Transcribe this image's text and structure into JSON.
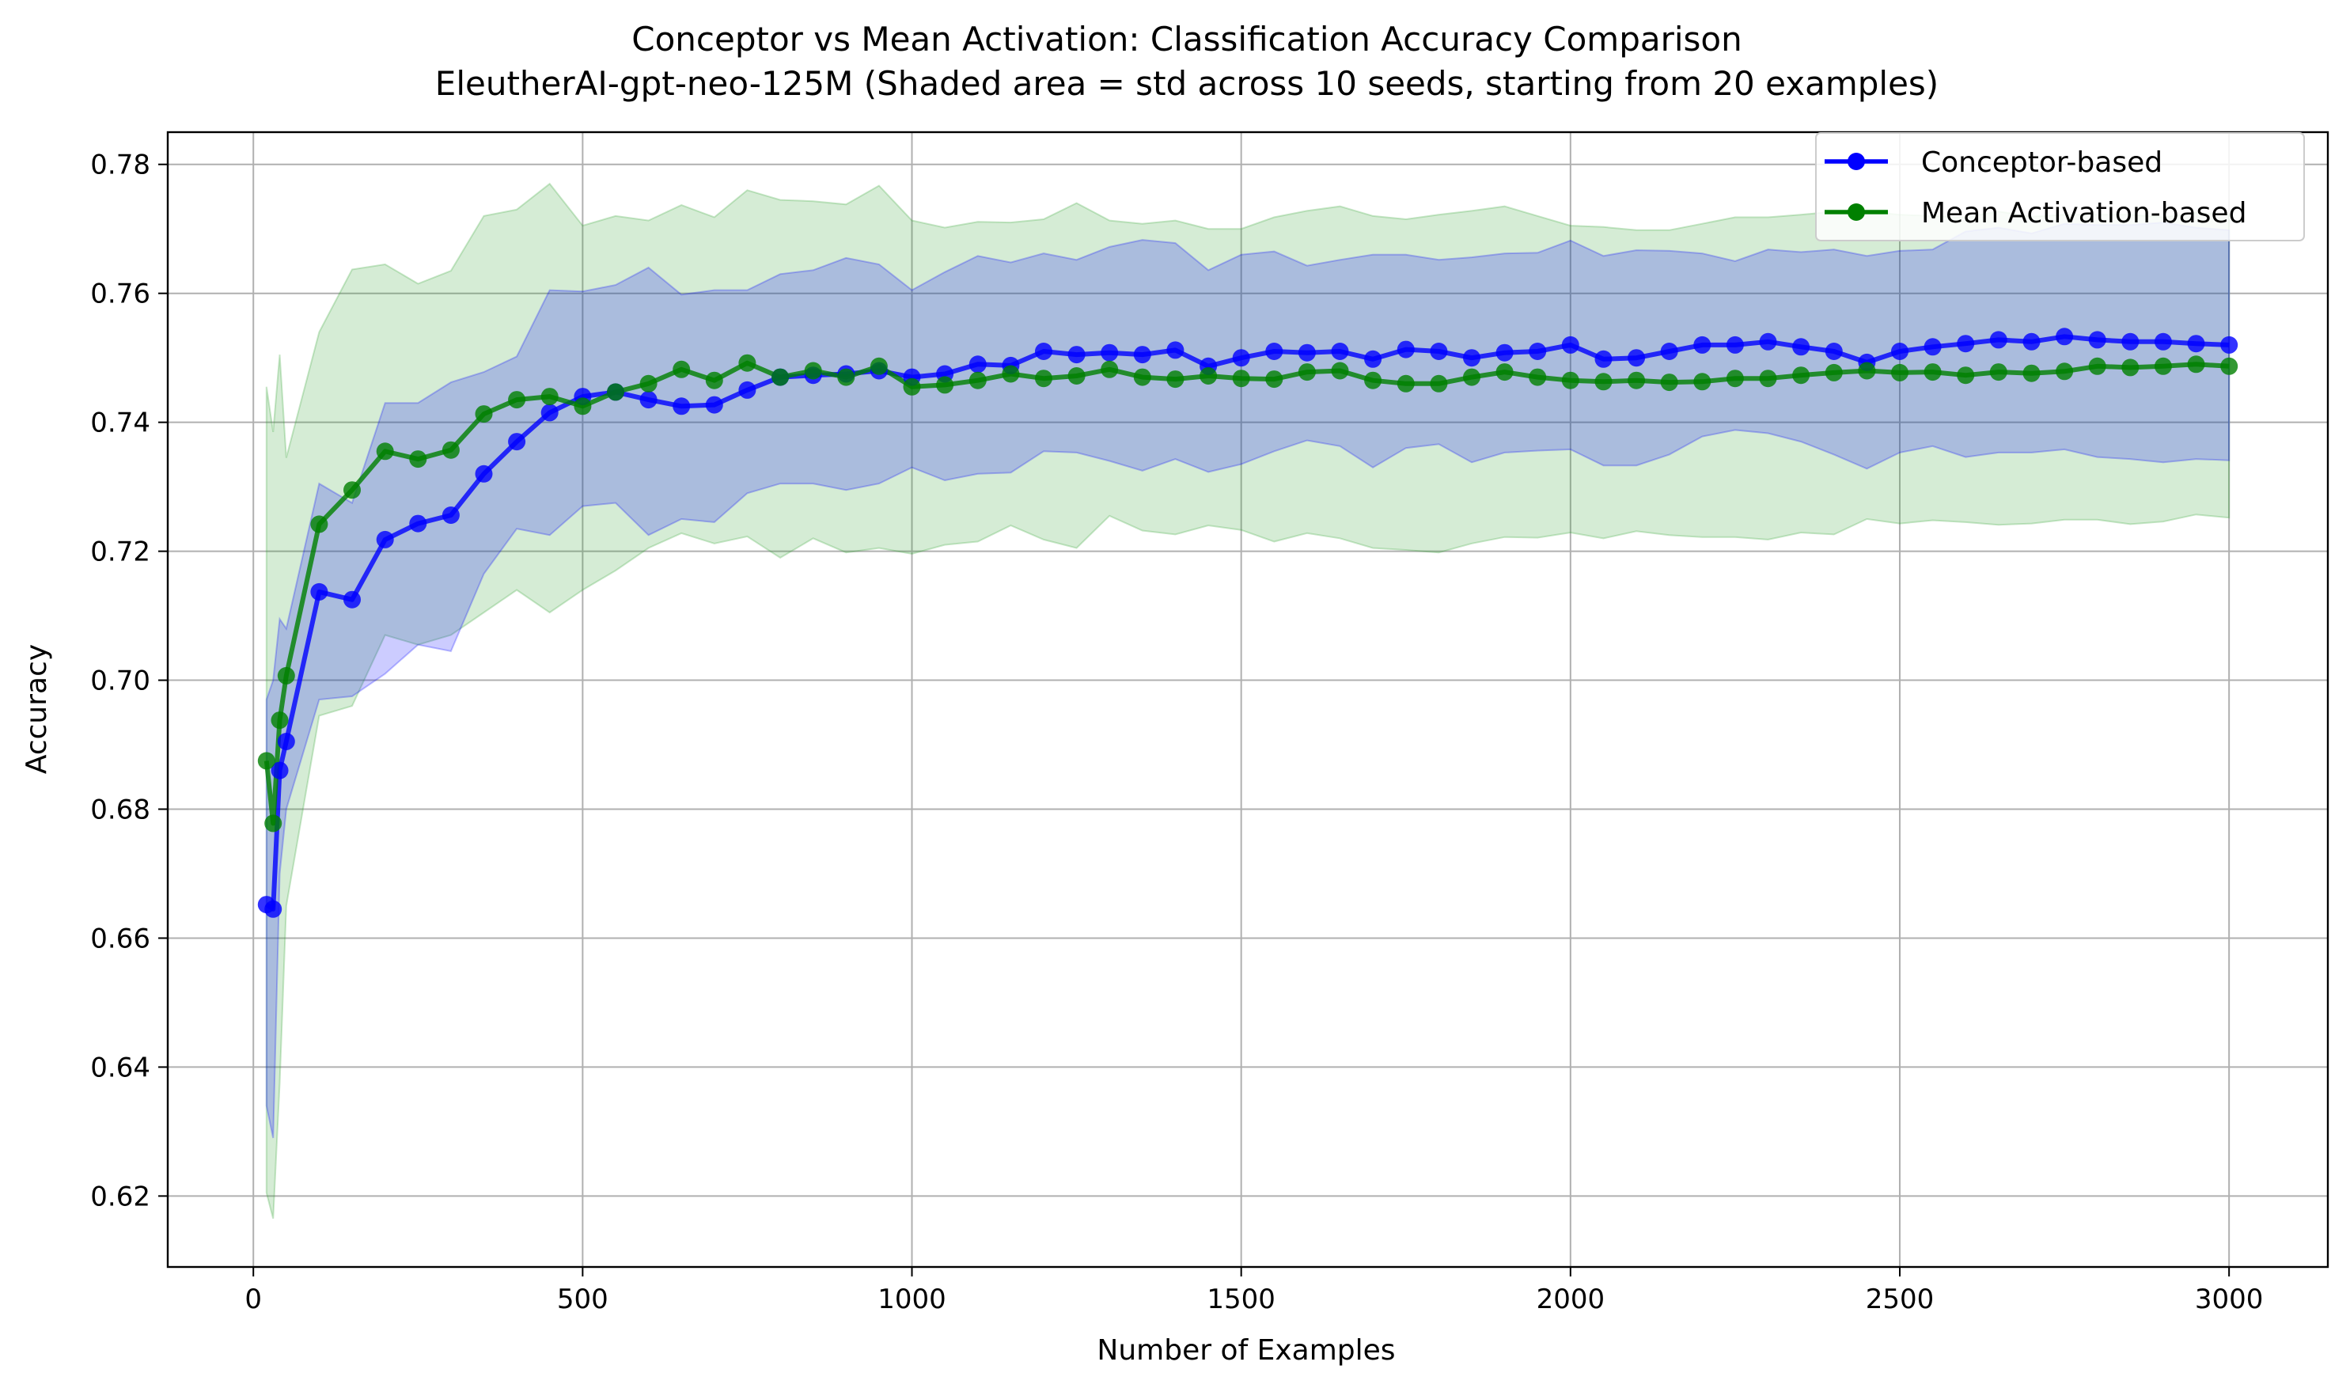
{
  "chart_data": {
    "type": "line",
    "title": "Conceptor vs Mean Activation: Classification Accuracy Comparison",
    "subtitle": "EleutherAI-gpt-neo-125M (Shaded area = std across 10 seeds, starting from 20 examples)",
    "xlabel": "Number of Examples",
    "ylabel": "Accuracy",
    "xlim": [
      -130,
      3150
    ],
    "ylim": [
      0.609,
      0.785
    ],
    "xticks": [
      0,
      500,
      1000,
      1500,
      2000,
      2500,
      3000
    ],
    "yticks": [
      0.62,
      0.64,
      0.66,
      0.68,
      0.7,
      0.72,
      0.74,
      0.76,
      0.78
    ],
    "grid": true,
    "legend_position": "top-right",
    "x": [
      20,
      30,
      40,
      50,
      100,
      150,
      200,
      250,
      300,
      350,
      400,
      450,
      500,
      550,
      600,
      650,
      700,
      750,
      800,
      850,
      900,
      950,
      1000,
      1050,
      1100,
      1150,
      1200,
      1250,
      1300,
      1350,
      1400,
      1450,
      1500,
      1550,
      1600,
      1650,
      1700,
      1750,
      1800,
      1850,
      1900,
      1950,
      2000,
      2050,
      2100,
      2150,
      2200,
      2250,
      2300,
      2350,
      2400,
      2450,
      2500,
      2550,
      2600,
      2650,
      2700,
      2750,
      2800,
      2850,
      2900,
      2950,
      3000
    ],
    "series": [
      {
        "name": "Conceptor-based",
        "color": "#0000ff",
        "band_color": "#0000ff",
        "values": [
          0.6652,
          0.6645,
          0.686,
          0.6905,
          0.7137,
          0.7125,
          0.7218,
          0.7243,
          0.7256,
          0.732,
          0.737,
          0.7415,
          0.744,
          0.7447,
          0.7435,
          0.7425,
          0.7427,
          0.745,
          0.747,
          0.7473,
          0.7475,
          0.748,
          0.747,
          0.7475,
          0.749,
          0.7488,
          0.751,
          0.7505,
          0.7508,
          0.7505,
          0.7512,
          0.7487,
          0.75,
          0.751,
          0.7508,
          0.751,
          0.7498,
          0.7513,
          0.751,
          0.75,
          0.7508,
          0.751,
          0.752,
          0.7498,
          0.75,
          0.751,
          0.752,
          0.752,
          0.7525,
          0.7517,
          0.751,
          0.7493,
          0.751,
          0.7517,
          0.7522,
          0.7528,
          0.7525,
          0.7533,
          0.7528,
          0.7525,
          0.7525,
          0.7522,
          0.752
        ],
        "std_lower": [
          0.634,
          0.629,
          0.67,
          0.68,
          0.697,
          0.6975,
          0.701,
          0.7055,
          0.7045,
          0.7165,
          0.7235,
          0.7225,
          0.727,
          0.7275,
          0.7225,
          0.725,
          0.7245,
          0.729,
          0.7305,
          0.7305,
          0.7295,
          0.7305,
          0.733,
          0.731,
          0.732,
          0.7322,
          0.7355,
          0.7353,
          0.734,
          0.7325,
          0.7343,
          0.7323,
          0.7335,
          0.7355,
          0.7372,
          0.7363,
          0.733,
          0.736,
          0.7366,
          0.7338,
          0.7353,
          0.7356,
          0.7358,
          0.7333,
          0.7333,
          0.735,
          0.7378,
          0.7388,
          0.7383,
          0.737,
          0.735,
          0.7328,
          0.7353,
          0.7363,
          0.7346,
          0.7353,
          0.7353,
          0.7358,
          0.7346,
          0.7343,
          0.7338,
          0.7343,
          0.7341
        ],
        "std_upper": [
          0.697,
          0.7,
          0.7095,
          0.708,
          0.7305,
          0.7275,
          0.743,
          0.743,
          0.7462,
          0.7478,
          0.7502,
          0.7605,
          0.7603,
          0.7613,
          0.764,
          0.7598,
          0.7605,
          0.7605,
          0.763,
          0.7636,
          0.7655,
          0.7645,
          0.7605,
          0.7633,
          0.7658,
          0.7648,
          0.7662,
          0.7652,
          0.7672,
          0.7683,
          0.7678,
          0.7636,
          0.766,
          0.7665,
          0.7643,
          0.7652,
          0.766,
          0.766,
          0.7652,
          0.7656,
          0.7662,
          0.7663,
          0.7682,
          0.7658,
          0.7667,
          0.7666,
          0.7662,
          0.765,
          0.7668,
          0.7664,
          0.7668,
          0.7658,
          0.7666,
          0.7668,
          0.7696,
          0.7702,
          0.7693,
          0.7708,
          0.7706,
          0.7706,
          0.771,
          0.7702,
          0.7698
        ]
      },
      {
        "name": "Mean Activation-based",
        "color": "#008000",
        "band_color": "#2ca02c",
        "values": [
          0.6875,
          0.6778,
          0.6938,
          0.7007,
          0.7242,
          0.7295,
          0.7355,
          0.7343,
          0.7357,
          0.7413,
          0.7435,
          0.744,
          0.7425,
          0.7447,
          0.746,
          0.7482,
          0.7465,
          0.7492,
          0.747,
          0.748,
          0.747,
          0.7487,
          0.7455,
          0.7458,
          0.7465,
          0.7475,
          0.7468,
          0.7472,
          0.7482,
          0.747,
          0.7467,
          0.7472,
          0.7468,
          0.7467,
          0.7478,
          0.748,
          0.7465,
          0.746,
          0.746,
          0.747,
          0.7478,
          0.747,
          0.7465,
          0.7463,
          0.7465,
          0.7462,
          0.7463,
          0.7468,
          0.7468,
          0.7473,
          0.7477,
          0.748,
          0.7477,
          0.7478,
          0.7473,
          0.7478,
          0.7476,
          0.7479,
          0.7487,
          0.7485,
          0.7487,
          0.749,
          0.7487
        ],
        "std_lower": [
          0.6205,
          0.6165,
          0.6375,
          0.665,
          0.6945,
          0.696,
          0.707,
          0.7055,
          0.707,
          0.7105,
          0.714,
          0.7105,
          0.714,
          0.717,
          0.7205,
          0.7228,
          0.7212,
          0.7223,
          0.719,
          0.722,
          0.7198,
          0.7205,
          0.7196,
          0.721,
          0.7215,
          0.724,
          0.7218,
          0.7205,
          0.7255,
          0.7232,
          0.7226,
          0.724,
          0.7233,
          0.7215,
          0.7228,
          0.722,
          0.7205,
          0.7202,
          0.7198,
          0.7212,
          0.7222,
          0.7221,
          0.7229,
          0.722,
          0.7231,
          0.7225,
          0.7222,
          0.7222,
          0.7218,
          0.7229,
          0.7226,
          0.725,
          0.7243,
          0.7248,
          0.7245,
          0.7241,
          0.7243,
          0.7249,
          0.7249,
          0.7242,
          0.7246,
          0.7257,
          0.7252
        ],
        "std_upper": [
          0.7455,
          0.7385,
          0.7505,
          0.7345,
          0.754,
          0.7637,
          0.7645,
          0.7615,
          0.7635,
          0.772,
          0.773,
          0.777,
          0.7705,
          0.772,
          0.7713,
          0.7737,
          0.7718,
          0.776,
          0.7745,
          0.7743,
          0.7738,
          0.7767,
          0.7713,
          0.7702,
          0.7711,
          0.771,
          0.7715,
          0.774,
          0.7713,
          0.7708,
          0.7713,
          0.77,
          0.77,
          0.7718,
          0.7728,
          0.7735,
          0.772,
          0.7715,
          0.7722,
          0.7728,
          0.7735,
          0.772,
          0.7705,
          0.7703,
          0.7698,
          0.7698,
          0.7708,
          0.7718,
          0.7718,
          0.7722,
          0.7727,
          0.7727,
          0.7722,
          0.772,
          0.7718,
          0.7727,
          0.7719,
          0.7722,
          0.7722,
          0.7722,
          0.7718,
          0.7725,
          0.7722
        ]
      }
    ]
  }
}
